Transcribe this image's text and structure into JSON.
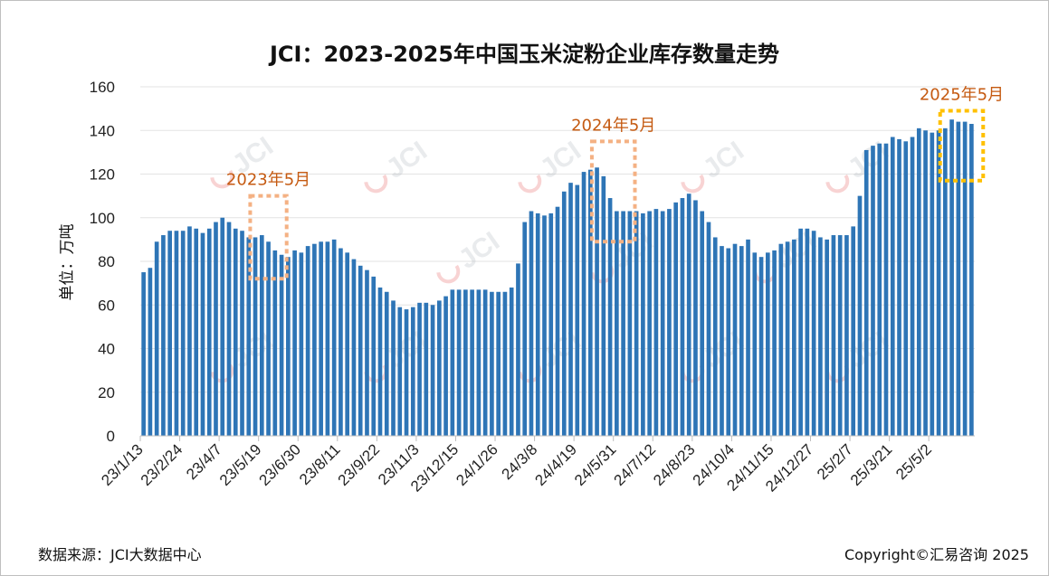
{
  "header": {
    "title": "JCI：2023-2025年中国玉米淀粉企业库存数量走势"
  },
  "axes": {
    "y_label": "单位：万吨"
  },
  "footer": {
    "source": "数据来源：JCI大数据中心",
    "copyright": "Copyright©汇易咨询 2025"
  },
  "watermark": {
    "text": "JCI"
  },
  "chart_data": {
    "type": "bar",
    "title": "JCI：2023-2025年中国玉米淀粉企业库存数量走势",
    "xlabel": "",
    "ylabel": "单位：万吨",
    "ylim": [
      0,
      160
    ],
    "yticks": [
      0,
      20,
      40,
      60,
      80,
      100,
      120,
      140,
      160
    ],
    "grid": true,
    "legend": "none",
    "bar_color": "#2e75b6",
    "xtick_labels": [
      "23/1/13",
      "23/2/24",
      "23/4/7",
      "23/5/19",
      "23/6/30",
      "23/8/11",
      "23/9/22",
      "23/11/3",
      "23/12/15",
      "24/1/26",
      "24/3/8",
      "24/4/19",
      "24/5/31",
      "24/7/12",
      "24/8/23",
      "24/10/4",
      "24/11/15",
      "24/12/27",
      "25/2/7",
      "25/3/21",
      "25/5/2"
    ],
    "xtick_every": 6,
    "values": [
      75,
      77,
      89,
      92,
      94,
      94,
      94,
      96,
      95,
      93,
      95,
      98,
      100,
      98,
      95,
      94,
      91,
      91,
      92,
      89,
      85,
      83,
      82,
      85,
      84,
      87,
      88,
      89,
      89,
      90,
      86,
      84,
      81,
      78,
      76,
      73,
      68,
      66,
      62,
      59,
      58,
      59,
      61,
      61,
      60,
      62,
      64,
      67,
      67,
      67,
      67,
      67,
      67,
      66,
      66,
      66,
      68,
      79,
      98,
      103,
      102,
      101,
      102,
      105,
      112,
      116,
      115,
      121,
      122,
      123,
      119,
      109,
      103,
      103,
      103,
      103,
      102,
      103,
      104,
      103,
      104,
      107,
      109,
      111,
      108,
      103,
      98,
      91,
      87,
      86,
      88,
      87,
      90,
      84,
      82,
      84,
      85,
      88,
      89,
      90,
      95,
      95,
      94,
      91,
      90,
      92,
      92,
      92,
      96,
      110,
      131,
      133,
      134,
      134,
      137,
      136,
      135,
      137,
      141,
      140,
      139,
      140,
      141,
      145,
      144,
      144,
      143
    ],
    "annotations": [
      {
        "label": "2023年5月",
        "color": "#f4b183",
        "start_index": 17,
        "end_index": 21,
        "y_range": [
          72,
          110
        ]
      },
      {
        "label": "2024年5月",
        "color": "#f4b183",
        "start_index": 69,
        "end_index": 74,
        "y_range": [
          89,
          135
        ]
      },
      {
        "label": "2025年5月",
        "color": "#ffc000",
        "start_index": 122,
        "end_index": 127,
        "y_range": [
          117,
          149
        ]
      }
    ]
  }
}
